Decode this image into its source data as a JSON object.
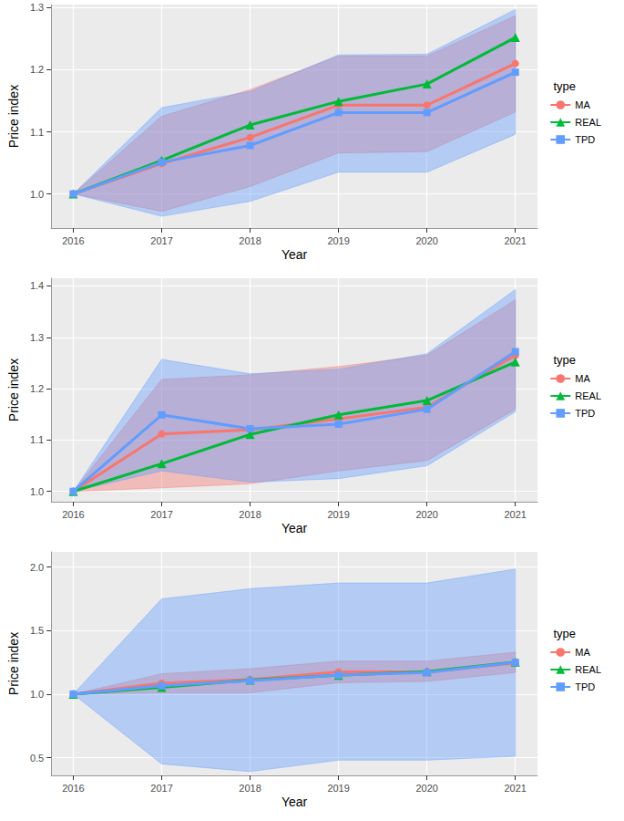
{
  "chart_data": [
    {
      "type": "line",
      "x_label": "Year",
      "y_label": "Price index",
      "legend_title": "type",
      "legend": "right",
      "grid": true,
      "x": [
        2016,
        2017,
        2018,
        2019,
        2020,
        2021
      ],
      "xlim": [
        2015.75,
        2021.25
      ],
      "xticks": [
        2016,
        2017,
        2018,
        2019,
        2020,
        2021
      ],
      "ylim": [
        0.945,
        1.305
      ],
      "yticks": [
        {
          "value": 1.0,
          "label": "1.0"
        },
        {
          "value": 1.1,
          "label": "1.1"
        },
        {
          "value": 1.2,
          "label": "1.2"
        },
        {
          "value": 1.3,
          "label": "1.3"
        }
      ],
      "series": [
        {
          "name": "MA",
          "color": "#F8766D",
          "marker": "circle",
          "values": [
            1.0,
            1.049,
            1.091,
            1.143,
            1.143,
            1.21
          ],
          "lower": [
            1.0,
            0.972,
            1.012,
            1.066,
            1.068,
            1.132
          ],
          "upper": [
            1.0,
            1.125,
            1.168,
            1.222,
            1.222,
            1.287
          ]
        },
        {
          "name": "REAL",
          "color": "#00BA38",
          "marker": "triangle",
          "values": [
            1.0,
            1.054,
            1.111,
            1.149,
            1.177,
            1.252
          ]
        },
        {
          "name": "TPD",
          "color": "#619CFF",
          "marker": "square",
          "values": [
            1.0,
            1.051,
            1.078,
            1.131,
            1.131,
            1.196
          ],
          "lower": [
            1.0,
            0.964,
            0.988,
            1.035,
            1.035,
            1.096
          ],
          "upper": [
            1.0,
            1.139,
            1.165,
            1.224,
            1.225,
            1.297
          ]
        }
      ]
    },
    {
      "type": "line",
      "x_label": "Year",
      "y_label": "Price index",
      "legend_title": "type",
      "legend": "right",
      "grid": true,
      "x": [
        2016,
        2017,
        2018,
        2019,
        2020,
        2021
      ],
      "xlim": [
        2015.75,
        2021.25
      ],
      "xticks": [
        2016,
        2017,
        2018,
        2019,
        2020,
        2021
      ],
      "ylim": [
        0.98,
        1.415
      ],
      "yticks": [
        {
          "value": 1.0,
          "label": "1.0"
        },
        {
          "value": 1.1,
          "label": "1.1"
        },
        {
          "value": 1.2,
          "label": "1.2"
        },
        {
          "value": 1.3,
          "label": "1.3"
        },
        {
          "value": 1.4,
          "label": "1.4"
        }
      ],
      "series": [
        {
          "name": "MA",
          "color": "#F8766D",
          "marker": "circle",
          "values": [
            1.0,
            1.112,
            1.12,
            1.141,
            1.164,
            1.265
          ],
          "lower": [
            1.0,
            1.007,
            1.015,
            1.04,
            1.06,
            1.16
          ],
          "upper": [
            1.0,
            1.218,
            1.227,
            1.243,
            1.265,
            1.373
          ]
        },
        {
          "name": "REAL",
          "color": "#00BA38",
          "marker": "triangle",
          "values": [
            1.0,
            1.054,
            1.111,
            1.149,
            1.177,
            1.252
          ]
        },
        {
          "name": "TPD",
          "color": "#619CFF",
          "marker": "square",
          "values": [
            1.0,
            1.149,
            1.122,
            1.131,
            1.16,
            1.272
          ],
          "lower": [
            1.0,
            1.04,
            1.018,
            1.025,
            1.05,
            1.155
          ],
          "upper": [
            1.0,
            1.257,
            1.229,
            1.238,
            1.268,
            1.393
          ]
        }
      ]
    },
    {
      "type": "line",
      "x_label": "Year",
      "y_label": "Price index",
      "legend_title": "type",
      "legend": "right",
      "grid": true,
      "x": [
        2016,
        2017,
        2018,
        2019,
        2020,
        2021
      ],
      "xlim": [
        2015.75,
        2021.25
      ],
      "xticks": [
        2016,
        2017,
        2018,
        2019,
        2020,
        2021
      ],
      "ylim": [
        0.36,
        2.12
      ],
      "yticks": [
        {
          "value": 0.5,
          "label": "0.5"
        },
        {
          "value": 1.0,
          "label": "1.0"
        },
        {
          "value": 1.5,
          "label": "1.5"
        },
        {
          "value": 2.0,
          "label": "2.0"
        }
      ],
      "series": [
        {
          "name": "MA",
          "color": "#F8766D",
          "marker": "circle",
          "values": [
            1.0,
            1.085,
            1.115,
            1.175,
            1.175,
            1.245
          ],
          "lower": [
            1.0,
            1.01,
            1.01,
            1.09,
            1.1,
            1.17
          ],
          "upper": [
            1.0,
            1.16,
            1.2,
            1.26,
            1.26,
            1.33
          ]
        },
        {
          "name": "REAL",
          "color": "#00BA38",
          "marker": "triangle",
          "values": [
            1.0,
            1.054,
            1.111,
            1.149,
            1.177,
            1.252
          ]
        },
        {
          "name": "TPD",
          "color": "#619CFF",
          "marker": "square",
          "values": [
            1.0,
            1.065,
            1.105,
            1.15,
            1.17,
            1.25
          ],
          "lower": [
            1.0,
            0.45,
            0.39,
            0.48,
            0.48,
            0.51
          ],
          "upper": [
            1.0,
            1.75,
            1.83,
            1.875,
            1.875,
            1.985
          ]
        }
      ]
    }
  ]
}
